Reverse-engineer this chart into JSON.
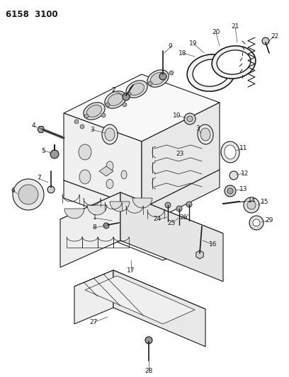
{
  "title": "6158 3100",
  "bg_color": "#ffffff",
  "line_color": "#1a1a1a",
  "title_fontsize": 9,
  "label_fontsize": 6.5,
  "fig_width": 4.08,
  "fig_height": 5.33,
  "dpi": 100
}
